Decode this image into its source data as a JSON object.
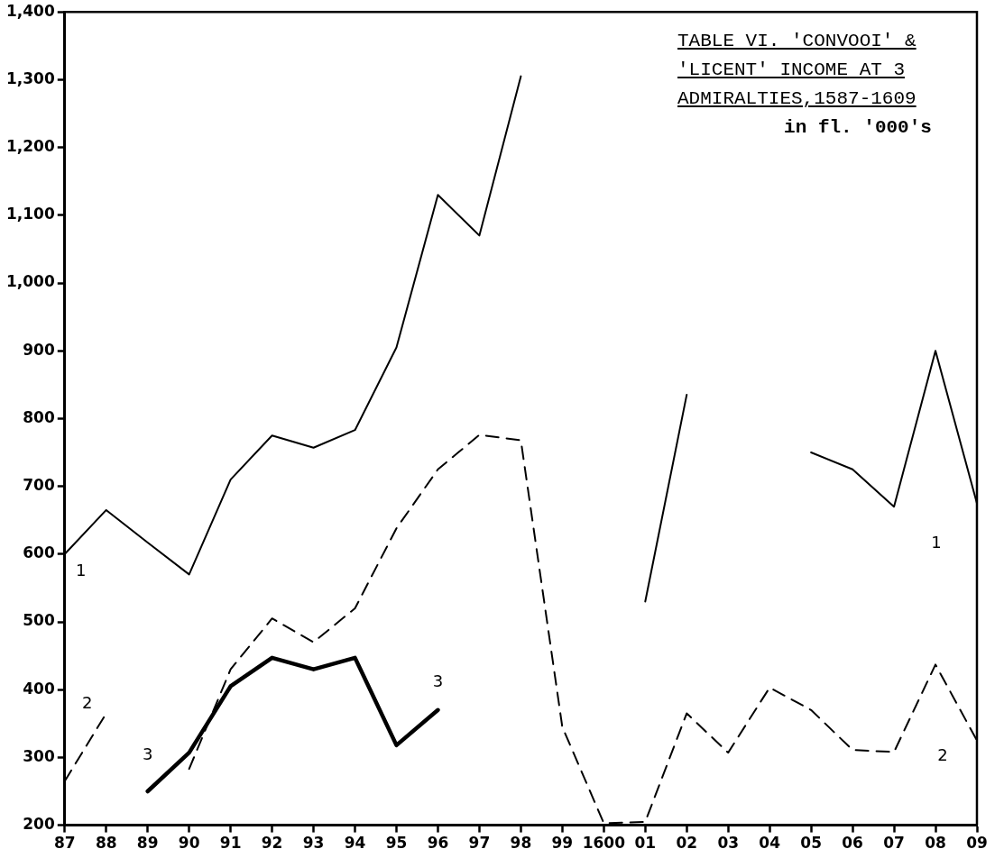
{
  "chart_data": {
    "type": "line",
    "title": "TABLE VI. 'CONVOOI' & 'LICENT' INCOME AT 3 ADMIRALTIES,1587-1609",
    "subtitle": "in fl. '000's",
    "categories": [
      "87",
      "88",
      "89",
      "90",
      "91",
      "92",
      "93",
      "94",
      "95",
      "96",
      "97",
      "98",
      "99",
      "1600",
      "01",
      "02",
      "03",
      "04",
      "05",
      "06",
      "07",
      "08",
      "09"
    ],
    "ylim": [
      200,
      1400
    ],
    "yticks": [
      200,
      300,
      400,
      500,
      600,
      700,
      800,
      900,
      {
        "value": 1000,
        "label": "1,000"
      },
      {
        "value": 1100,
        "label": "1,100"
      },
      {
        "value": 1200,
        "label": "1,200"
      },
      {
        "value": 1300,
        "label": "1,300"
      },
      {
        "value": 1400,
        "label": "1,400"
      }
    ],
    "grid": false,
    "legend": false,
    "marker": "none",
    "series": [
      {
        "name": "1",
        "color": "#000000",
        "line_style": "solid",
        "values": [
          600,
          665,
          617,
          570,
          710,
          775,
          757,
          783,
          905,
          1130,
          1070,
          1305,
          null,
          null,
          530,
          835,
          null,
          null,
          750,
          725,
          670,
          900,
          675
        ]
      },
      {
        "name": "2",
        "color": "#000000",
        "line_style": "dashed",
        "values": [
          265,
          365,
          null,
          283,
          430,
          505,
          470,
          520,
          638,
          725,
          776,
          768,
          345,
          203,
          205,
          365,
          307,
          403,
          370,
          311,
          308,
          437,
          325
        ]
      },
      {
        "name": "3",
        "color": "#000000",
        "line_style": "solid",
        "values": [
          null,
          null,
          250,
          307,
          405,
          447,
          430,
          447,
          318,
          370,
          null,
          null,
          null,
          null,
          null,
          null,
          null,
          null,
          null,
          null,
          null,
          null,
          null
        ]
      }
    ]
  }
}
